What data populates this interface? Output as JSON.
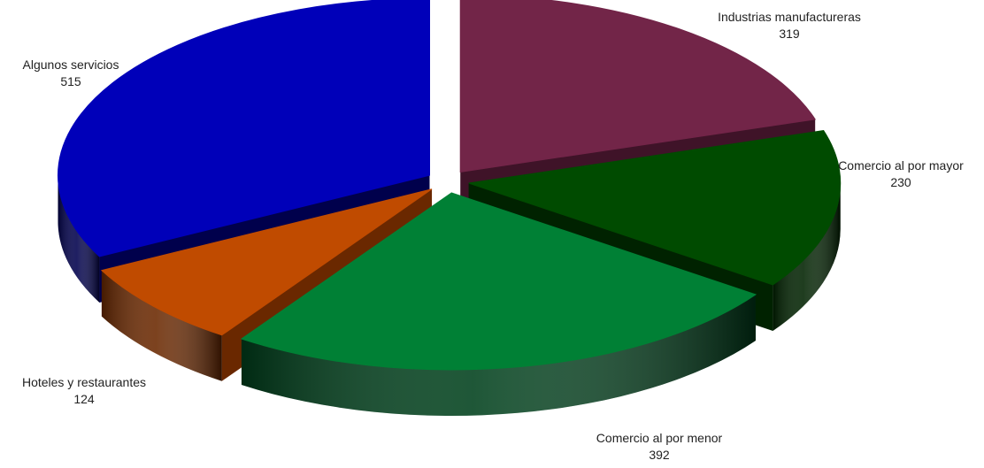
{
  "chart_data": {
    "type": "pie",
    "style": "3d-exploded",
    "title": "",
    "slices": [
      {
        "label": "Industrias manufactureras",
        "value": 319,
        "color": "#722548",
        "side": "#3f1328"
      },
      {
        "label": "Comercio al por mayor",
        "value": 230,
        "color": "#004b00",
        "side": "#002200"
      },
      {
        "label": "Comercio al por menor",
        "value": 392,
        "color": "#008035",
        "side": "#00401c"
      },
      {
        "label": "Hoteles y restaurantes",
        "value": 124,
        "color": "#c04b00",
        "side": "#6a2800"
      },
      {
        "label": "Algunos servicios",
        "value": 515,
        "color": "#0000b9",
        "side": "#00004c"
      }
    ]
  }
}
